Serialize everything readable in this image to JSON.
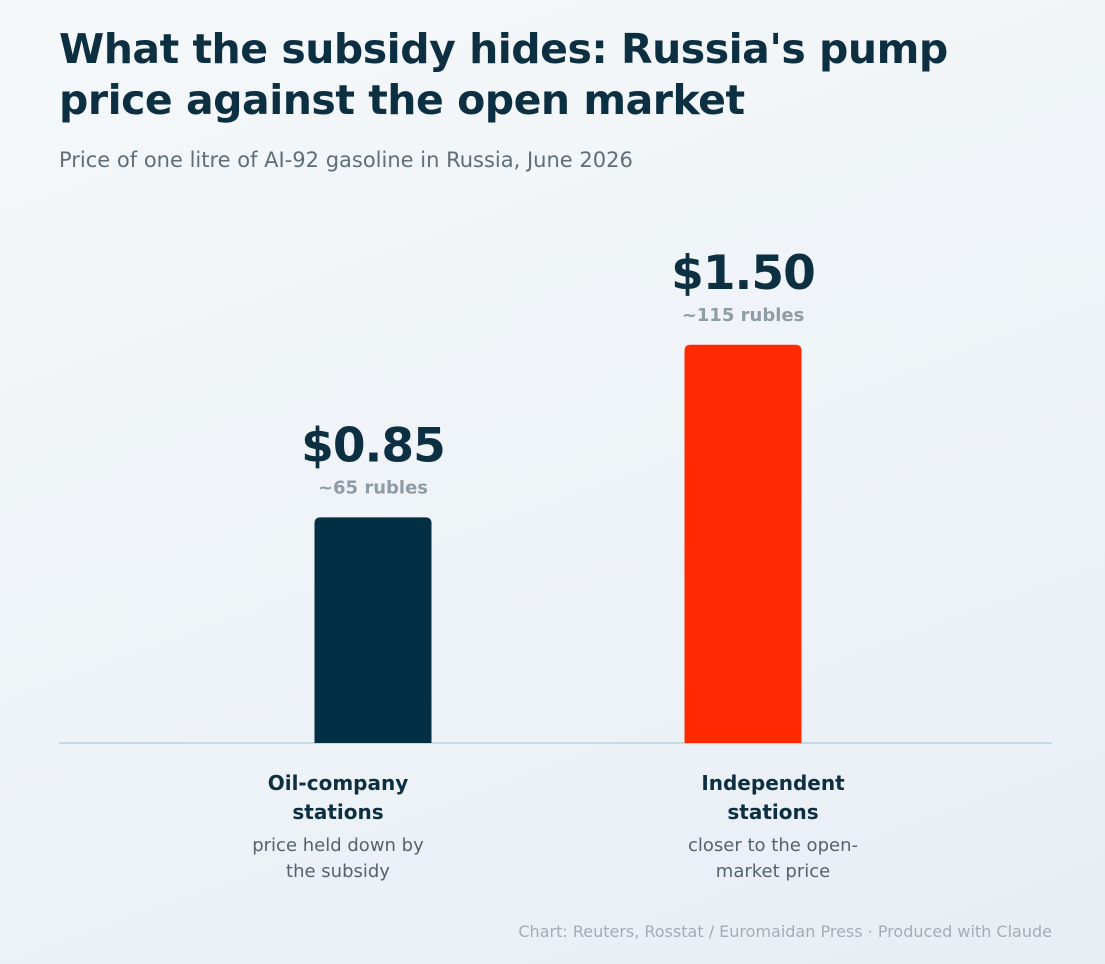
{
  "chart_data": {
    "type": "bar",
    "title": "What the subsidy hides: Russia's pump price against the open market",
    "subtitle": "Price of one litre of AI-92 gasoline in Russia, June 2026",
    "categories": [
      "Oil-company\nstations",
      "Independent\nstations"
    ],
    "category_notes": [
      "price held down by\nthe subsidy",
      "closer to the open-\nmarket price"
    ],
    "values": [
      0.85,
      1.5
    ],
    "value_labels": [
      "$0.85",
      "$1.50"
    ],
    "rubles_labels": [
      "~65 rubles",
      "~115 rubles"
    ],
    "colors": [
      "#022f43",
      "#ff2a00"
    ],
    "ylim": [
      0,
      2.0
    ],
    "grid": false,
    "legend": "none",
    "xlabel": "",
    "ylabel": ""
  },
  "footer": "Chart: Reuters, Rosstat / Euromaidan Press · Produced with Claude",
  "colors": {
    "title": "#0d2f42",
    "baseline": "#c7d9e2"
  }
}
